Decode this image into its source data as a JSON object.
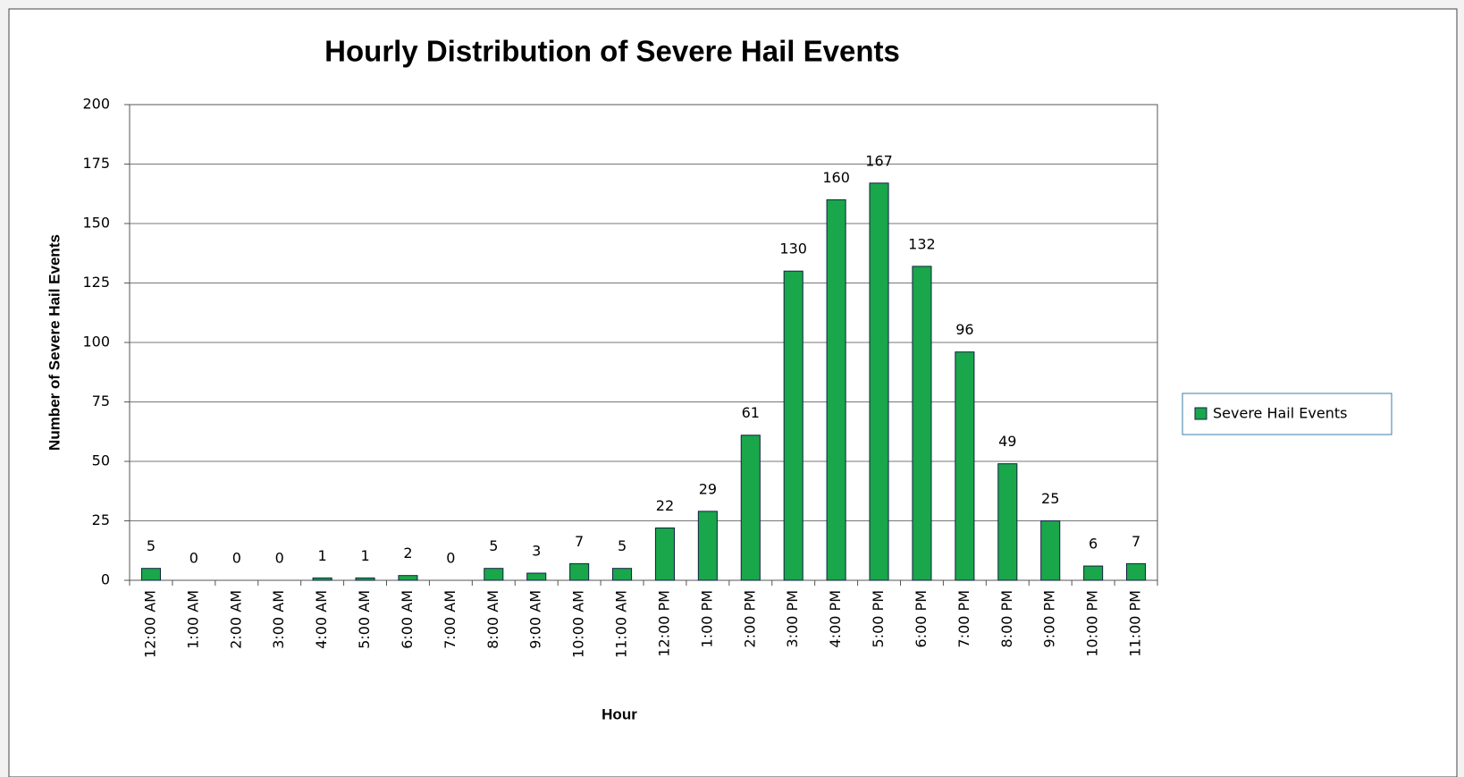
{
  "chart_data": {
    "type": "bar",
    "title": "Hourly Distribution of Severe Hail Events",
    "x_label": "Hour",
    "y_label": "Number of Severe Hail Events",
    "categories": [
      "12:00 AM",
      "1:00 AM",
      "2:00 AM",
      "3:00 AM",
      "4:00 AM",
      "5:00 AM",
      "6:00 AM",
      "7:00 AM",
      "8:00 AM",
      "9:00 AM",
      "10:00 AM",
      "11:00 AM",
      "12:00 PM",
      "1:00 PM",
      "2:00 PM",
      "3:00 PM",
      "4:00 PM",
      "5:00 PM",
      "6:00 PM",
      "7:00 PM",
      "8:00 PM",
      "9:00 PM",
      "10:00 PM",
      "11:00 PM"
    ],
    "series": [
      {
        "name": "Severe Hail Events",
        "color": "#1aa64a",
        "values": [
          5,
          0,
          0,
          0,
          1,
          1,
          2,
          0,
          5,
          3,
          7,
          5,
          22,
          29,
          61,
          130,
          160,
          167,
          132,
          96,
          49,
          25,
          6,
          7
        ]
      }
    ],
    "ylim": [
      0,
      200
    ],
    "yticks": [
      0,
      25,
      50,
      75,
      100,
      125,
      150,
      175,
      200
    ],
    "grid": true,
    "legend": "right",
    "data_labels": true
  }
}
